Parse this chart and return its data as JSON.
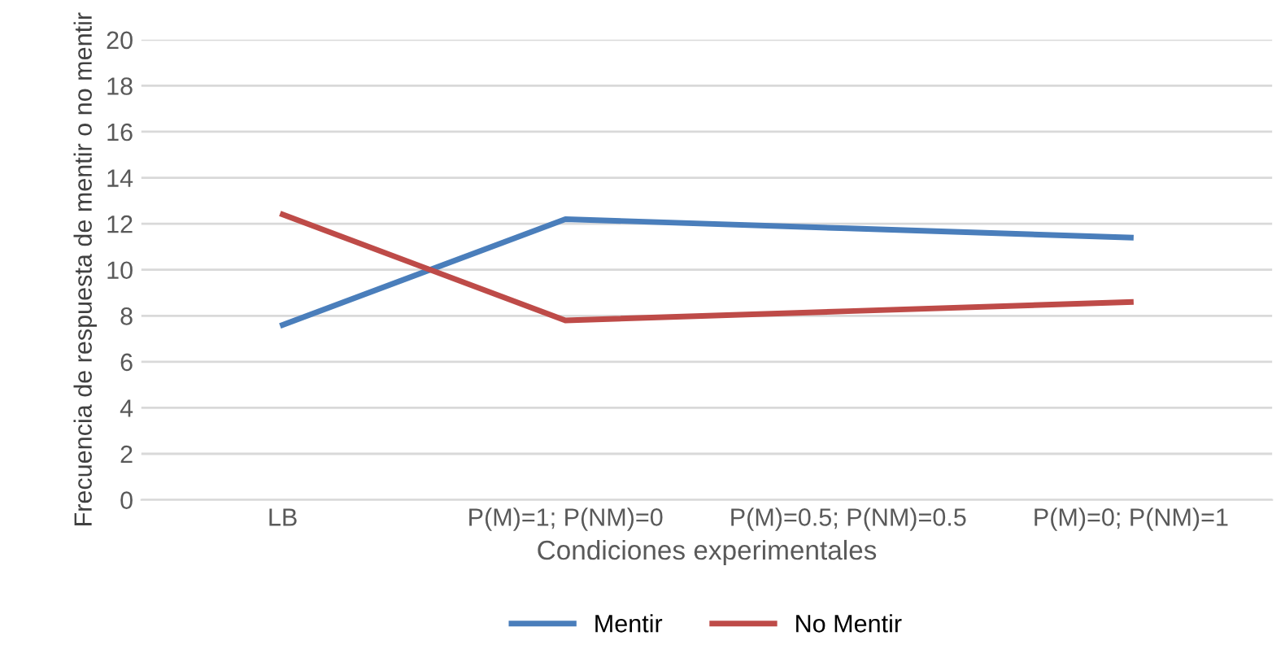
{
  "chart_data": {
    "type": "line",
    "xlabel": "Condiciones experimentales",
    "ylabel": "Frecuencia de respuesta de mentir o no mentir",
    "categories": [
      "LB",
      "P(M)=1; P(NM)=0",
      "P(M)=0.5; P(NM)=0.5",
      "P(M)=0; P(NM)=1"
    ],
    "series": [
      {
        "name": "Mentir",
        "color": "#4a7ebb",
        "values": [
          7.6,
          12.2,
          11.8,
          11.4
        ]
      },
      {
        "name": "No Mentir",
        "color": "#be4b48",
        "values": [
          12.4,
          7.8,
          8.2,
          8.6
        ]
      }
    ],
    "ylim": [
      0,
      20
    ],
    "yticks": [
      0,
      2,
      4,
      6,
      8,
      10,
      12,
      14,
      16,
      18,
      20
    ],
    "grid": "y",
    "legend": "bottom",
    "marker": "none",
    "line_style": "solid"
  }
}
